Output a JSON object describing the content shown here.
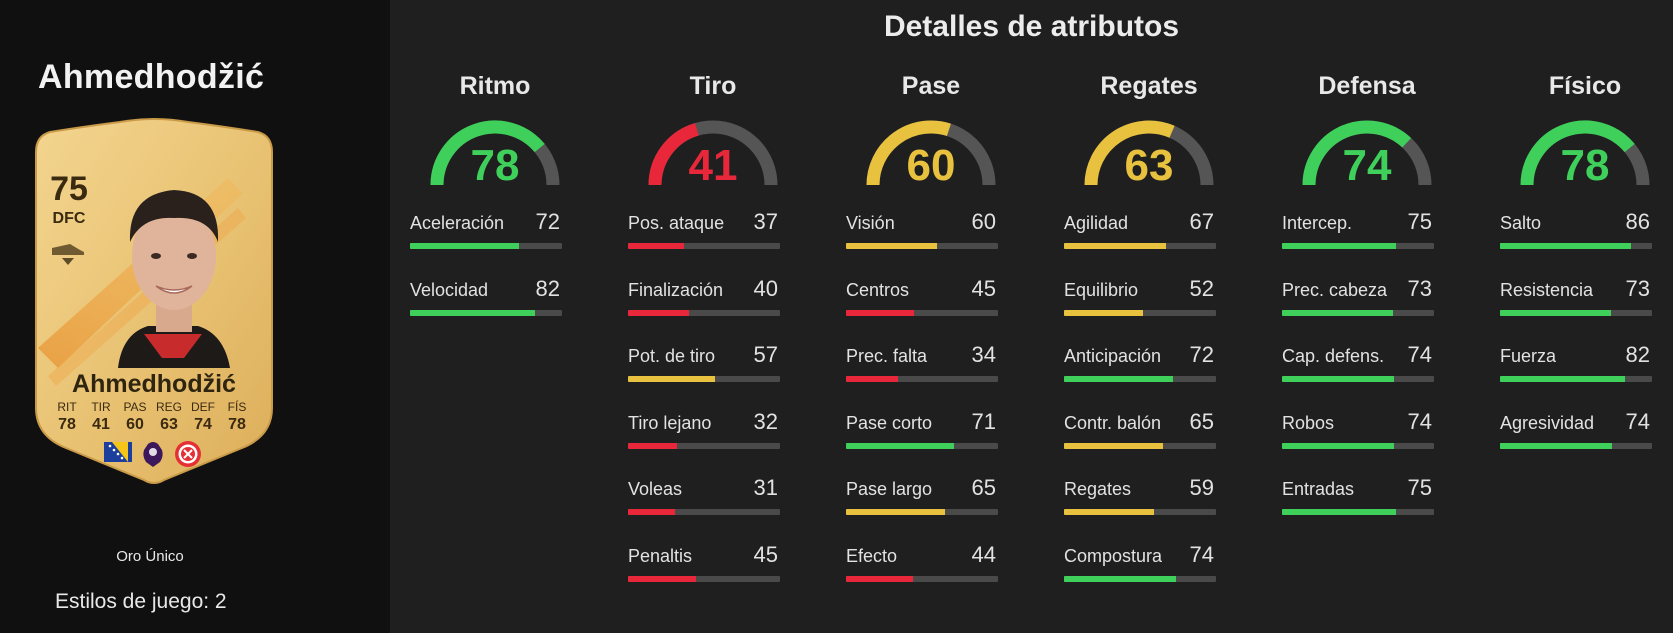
{
  "player": {
    "name": "Ahmedhodžić",
    "card": {
      "rating": "75",
      "position": "DFC",
      "name": "Ahmedhodžić",
      "stats": [
        {
          "label": "RIT",
          "value": "78"
        },
        {
          "label": "TIR",
          "value": "41"
        },
        {
          "label": "PAS",
          "value": "60"
        },
        {
          "label": "REG",
          "value": "63"
        },
        {
          "label": "DEF",
          "value": "74"
        },
        {
          "label": "FÍS",
          "value": "78"
        }
      ]
    },
    "card_type": "Oro Único",
    "playstyles": "Estilos de juego: 2"
  },
  "title": "Detalles de atributos",
  "colors": {
    "green": "#3ed05a",
    "yellow": "#e8c13f",
    "red": "#e8283a",
    "track": "#4a4a4a",
    "gauge_track": "#555555"
  },
  "categories": [
    {
      "name": "Ritmo",
      "value": 78,
      "color": "green",
      "attributes": [
        {
          "name": "Aceleración",
          "value": 72,
          "color": "green"
        },
        {
          "name": "Velocidad",
          "value": 82,
          "color": "green"
        }
      ]
    },
    {
      "name": "Tiro",
      "value": 41,
      "color": "red",
      "attributes": [
        {
          "name": "Pos. ataque",
          "value": 37,
          "color": "red"
        },
        {
          "name": "Finalización",
          "value": 40,
          "color": "red"
        },
        {
          "name": "Pot. de tiro",
          "value": 57,
          "color": "yellow"
        },
        {
          "name": "Tiro lejano",
          "value": 32,
          "color": "red"
        },
        {
          "name": "Voleas",
          "value": 31,
          "color": "red"
        },
        {
          "name": "Penaltis",
          "value": 45,
          "color": "red"
        }
      ]
    },
    {
      "name": "Pase",
      "value": 60,
      "color": "yellow",
      "attributes": [
        {
          "name": "Visión",
          "value": 60,
          "color": "yellow"
        },
        {
          "name": "Centros",
          "value": 45,
          "color": "red"
        },
        {
          "name": "Prec. falta",
          "value": 34,
          "color": "red"
        },
        {
          "name": "Pase corto",
          "value": 71,
          "color": "green"
        },
        {
          "name": "Pase largo",
          "value": 65,
          "color": "yellow"
        },
        {
          "name": "Efecto",
          "value": 44,
          "color": "red"
        }
      ]
    },
    {
      "name": "Regates",
      "value": 63,
      "color": "yellow",
      "attributes": [
        {
          "name": "Agilidad",
          "value": 67,
          "color": "yellow"
        },
        {
          "name": "Equilibrio",
          "value": 52,
          "color": "yellow"
        },
        {
          "name": "Anticipación",
          "value": 72,
          "color": "green"
        },
        {
          "name": "Contr. balón",
          "value": 65,
          "color": "yellow"
        },
        {
          "name": "Regates",
          "value": 59,
          "color": "yellow"
        },
        {
          "name": "Compostura",
          "value": 74,
          "color": "green"
        }
      ]
    },
    {
      "name": "Defensa",
      "value": 74,
      "color": "green",
      "attributes": [
        {
          "name": "Intercep.",
          "value": 75,
          "color": "green"
        },
        {
          "name": "Prec. cabeza",
          "value": 73,
          "color": "green"
        },
        {
          "name": "Cap. defens.",
          "value": 74,
          "color": "green"
        },
        {
          "name": "Robos",
          "value": 74,
          "color": "green"
        },
        {
          "name": "Entradas",
          "value": 75,
          "color": "green"
        }
      ]
    },
    {
      "name": "Físico",
      "value": 78,
      "color": "green",
      "attributes": [
        {
          "name": "Salto",
          "value": 86,
          "color": "green"
        },
        {
          "name": "Resistencia",
          "value": 73,
          "color": "green"
        },
        {
          "name": "Fuerza",
          "value": 82,
          "color": "green"
        },
        {
          "name": "Agresividad",
          "value": 74,
          "color": "green"
        }
      ]
    }
  ]
}
